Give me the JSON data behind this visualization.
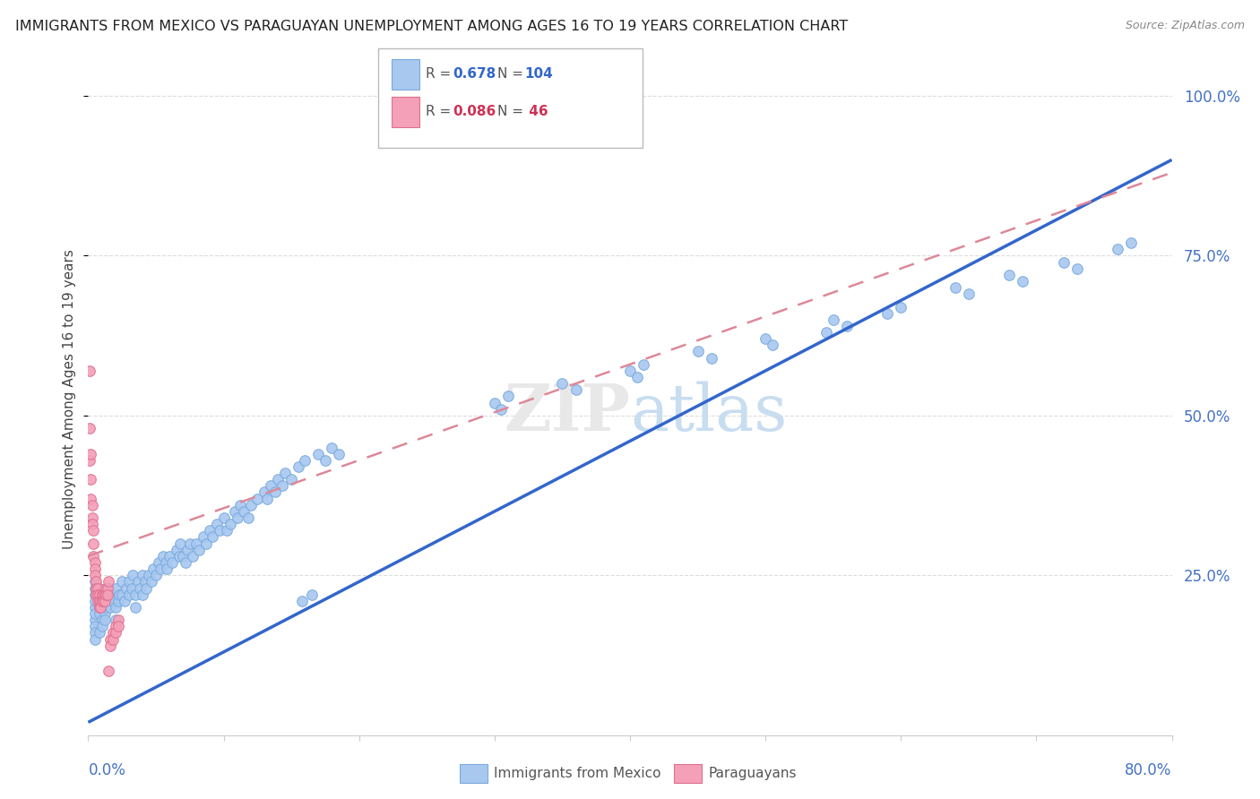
{
  "title": "IMMIGRANTS FROM MEXICO VS PARAGUAYAN UNEMPLOYMENT AMONG AGES 16 TO 19 YEARS CORRELATION CHART",
  "source": "Source: ZipAtlas.com",
  "ylabel": "Unemployment Among Ages 16 to 19 years",
  "ytick_labels": [
    "25.0%",
    "50.0%",
    "75.0%",
    "100.0%"
  ],
  "ytick_values": [
    0.25,
    0.5,
    0.75,
    1.0
  ],
  "xlim": [
    0.0,
    0.8
  ],
  "ylim": [
    0.0,
    1.05
  ],
  "series1_label": "Immigrants from Mexico",
  "series1_color": "#a8c8f0",
  "series1_edge": "#7aaadd",
  "series2_label": "Paraguayans",
  "series2_color": "#f4a0b8",
  "series2_edge": "#e07090",
  "background_color": "#ffffff",
  "grid_color": "#dddddd",
  "blue_line_color": "#3366cc",
  "pink_line_color": "#dd8899",
  "blue_scatter": [
    [
      0.005,
      0.18
    ],
    [
      0.005,
      0.2
    ],
    [
      0.005,
      0.22
    ],
    [
      0.005,
      0.17
    ],
    [
      0.005,
      0.24
    ],
    [
      0.005,
      0.19
    ],
    [
      0.005,
      0.21
    ],
    [
      0.005,
      0.16
    ],
    [
      0.005,
      0.23
    ],
    [
      0.005,
      0.15
    ],
    [
      0.008,
      0.2
    ],
    [
      0.008,
      0.22
    ],
    [
      0.008,
      0.19
    ],
    [
      0.008,
      0.23
    ],
    [
      0.008,
      0.16
    ],
    [
      0.01,
      0.18
    ],
    [
      0.01,
      0.21
    ],
    [
      0.01,
      0.2
    ],
    [
      0.01,
      0.22
    ],
    [
      0.01,
      0.17
    ],
    [
      0.012,
      0.19
    ],
    [
      0.012,
      0.21
    ],
    [
      0.012,
      0.18
    ],
    [
      0.013,
      0.2
    ],
    [
      0.014,
      0.22
    ],
    [
      0.015,
      0.21
    ],
    [
      0.015,
      0.23
    ],
    [
      0.016,
      0.2
    ],
    [
      0.017,
      0.22
    ],
    [
      0.018,
      0.21
    ],
    [
      0.02,
      0.2
    ],
    [
      0.02,
      0.23
    ],
    [
      0.02,
      0.18
    ],
    [
      0.022,
      0.21
    ],
    [
      0.023,
      0.22
    ],
    [
      0.025,
      0.22
    ],
    [
      0.025,
      0.24
    ],
    [
      0.027,
      0.21
    ],
    [
      0.028,
      0.23
    ],
    [
      0.03,
      0.22
    ],
    [
      0.03,
      0.24
    ],
    [
      0.032,
      0.23
    ],
    [
      0.033,
      0.25
    ],
    [
      0.035,
      0.22
    ],
    [
      0.035,
      0.2
    ],
    [
      0.037,
      0.24
    ],
    [
      0.038,
      0.23
    ],
    [
      0.04,
      0.22
    ],
    [
      0.04,
      0.25
    ],
    [
      0.042,
      0.24
    ],
    [
      0.043,
      0.23
    ],
    [
      0.045,
      0.25
    ],
    [
      0.047,
      0.24
    ],
    [
      0.048,
      0.26
    ],
    [
      0.05,
      0.25
    ],
    [
      0.052,
      0.27
    ],
    [
      0.053,
      0.26
    ],
    [
      0.055,
      0.28
    ],
    [
      0.057,
      0.27
    ],
    [
      0.058,
      0.26
    ],
    [
      0.06,
      0.28
    ],
    [
      0.062,
      0.27
    ],
    [
      0.065,
      0.29
    ],
    [
      0.067,
      0.28
    ],
    [
      0.068,
      0.3
    ],
    [
      0.07,
      0.28
    ],
    [
      0.072,
      0.27
    ],
    [
      0.073,
      0.29
    ],
    [
      0.075,
      0.3
    ],
    [
      0.077,
      0.28
    ],
    [
      0.08,
      0.3
    ],
    [
      0.082,
      0.29
    ],
    [
      0.085,
      0.31
    ],
    [
      0.087,
      0.3
    ],
    [
      0.09,
      0.32
    ],
    [
      0.092,
      0.31
    ],
    [
      0.095,
      0.33
    ],
    [
      0.097,
      0.32
    ],
    [
      0.1,
      0.34
    ],
    [
      0.102,
      0.32
    ],
    [
      0.105,
      0.33
    ],
    [
      0.108,
      0.35
    ],
    [
      0.11,
      0.34
    ],
    [
      0.112,
      0.36
    ],
    [
      0.115,
      0.35
    ],
    [
      0.118,
      0.34
    ],
    [
      0.12,
      0.36
    ],
    [
      0.125,
      0.37
    ],
    [
      0.13,
      0.38
    ],
    [
      0.132,
      0.37
    ],
    [
      0.135,
      0.39
    ],
    [
      0.138,
      0.38
    ],
    [
      0.14,
      0.4
    ],
    [
      0.143,
      0.39
    ],
    [
      0.145,
      0.41
    ],
    [
      0.15,
      0.4
    ],
    [
      0.155,
      0.42
    ],
    [
      0.158,
      0.21
    ],
    [
      0.16,
      0.43
    ],
    [
      0.165,
      0.22
    ],
    [
      0.17,
      0.44
    ],
    [
      0.175,
      0.43
    ],
    [
      0.18,
      0.45
    ],
    [
      0.185,
      0.44
    ],
    [
      0.3,
      0.52
    ],
    [
      0.31,
      0.53
    ],
    [
      0.305,
      0.51
    ],
    [
      0.35,
      0.55
    ],
    [
      0.36,
      0.54
    ],
    [
      0.4,
      0.57
    ],
    [
      0.41,
      0.58
    ],
    [
      0.405,
      0.56
    ],
    [
      0.45,
      0.6
    ],
    [
      0.46,
      0.59
    ],
    [
      0.5,
      0.62
    ],
    [
      0.505,
      0.61
    ],
    [
      0.55,
      0.65
    ],
    [
      0.56,
      0.64
    ],
    [
      0.545,
      0.63
    ],
    [
      0.6,
      0.67
    ],
    [
      0.59,
      0.66
    ],
    [
      0.64,
      0.7
    ],
    [
      0.65,
      0.69
    ],
    [
      0.68,
      0.72
    ],
    [
      0.69,
      0.71
    ],
    [
      0.72,
      0.74
    ],
    [
      0.73,
      0.73
    ],
    [
      0.76,
      0.76
    ],
    [
      0.77,
      0.77
    ]
  ],
  "pink_scatter": [
    [
      0.001,
      0.57
    ],
    [
      0.001,
      0.48
    ],
    [
      0.001,
      0.43
    ],
    [
      0.002,
      0.44
    ],
    [
      0.002,
      0.4
    ],
    [
      0.002,
      0.37
    ],
    [
      0.003,
      0.36
    ],
    [
      0.003,
      0.34
    ],
    [
      0.003,
      0.33
    ],
    [
      0.004,
      0.32
    ],
    [
      0.004,
      0.3
    ],
    [
      0.004,
      0.28
    ],
    [
      0.005,
      0.27
    ],
    [
      0.005,
      0.26
    ],
    [
      0.005,
      0.25
    ],
    [
      0.006,
      0.24
    ],
    [
      0.006,
      0.23
    ],
    [
      0.006,
      0.22
    ],
    [
      0.007,
      0.23
    ],
    [
      0.007,
      0.22
    ],
    [
      0.007,
      0.21
    ],
    [
      0.008,
      0.22
    ],
    [
      0.008,
      0.21
    ],
    [
      0.008,
      0.2
    ],
    [
      0.009,
      0.21
    ],
    [
      0.009,
      0.2
    ],
    [
      0.01,
      0.22
    ],
    [
      0.01,
      0.21
    ],
    [
      0.011,
      0.22
    ],
    [
      0.011,
      0.21
    ],
    [
      0.012,
      0.22
    ],
    [
      0.012,
      0.21
    ],
    [
      0.013,
      0.23
    ],
    [
      0.013,
      0.22
    ],
    [
      0.014,
      0.23
    ],
    [
      0.014,
      0.22
    ],
    [
      0.015,
      0.24
    ],
    [
      0.015,
      0.1
    ],
    [
      0.016,
      0.15
    ],
    [
      0.016,
      0.14
    ],
    [
      0.018,
      0.16
    ],
    [
      0.018,
      0.15
    ],
    [
      0.02,
      0.17
    ],
    [
      0.02,
      0.16
    ],
    [
      0.022,
      0.18
    ],
    [
      0.022,
      0.17
    ]
  ],
  "blue_line": [
    [
      0.0,
      0.02
    ],
    [
      0.8,
      0.9
    ]
  ],
  "pink_line": [
    [
      0.0,
      0.28
    ],
    [
      0.8,
      0.88
    ]
  ]
}
